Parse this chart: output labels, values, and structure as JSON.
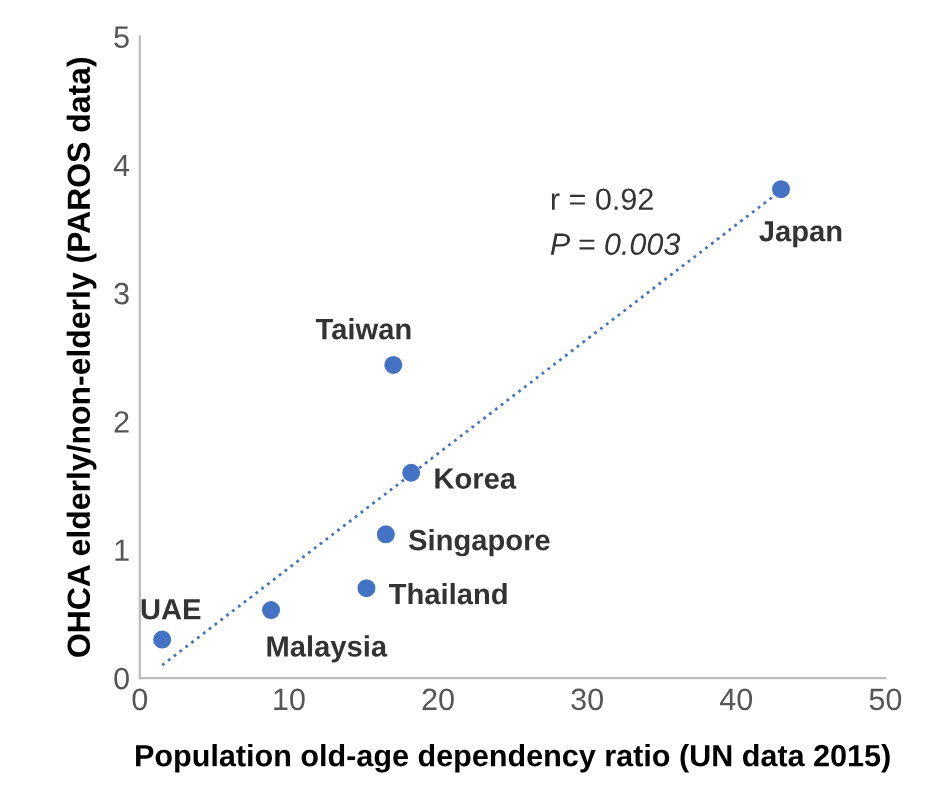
{
  "chart_data": {
    "type": "scatter",
    "xlabel": "Population old-age dependency ratio (UN data 2015)",
    "ylabel": "OHCA elderly/non-elderly (PAROS data)",
    "xlim": [
      0,
      50
    ],
    "ylim": [
      0,
      5
    ],
    "xticks": [
      0,
      10,
      20,
      30,
      40,
      50
    ],
    "yticks": [
      0,
      1,
      2,
      3,
      4,
      5
    ],
    "grid": false,
    "legend": false,
    "series": [
      {
        "marker": "circle",
        "color": "#4472c4",
        "x": [
          1.5,
          8.8,
          15.2,
          16.5,
          18.2,
          17,
          43
        ],
        "values": [
          0.3,
          0.53,
          0.7,
          1.12,
          1.6,
          2.44,
          3.81
        ]
      },
      {
        "type": "line",
        "color": "#4472c4",
        "line_style": "dotted",
        "x": [
          1.5,
          43
        ],
        "values": [
          0.1,
          3.8
        ]
      }
    ],
    "annotations": [
      {
        "text": "UAE",
        "x": 1.5,
        "y": 0.3
      },
      {
        "text": "Malaysia",
        "x": 8.8,
        "y": 0.53
      },
      {
        "text": "Thailand",
        "x": 15.2,
        "y": 0.7
      },
      {
        "text": "Singapore",
        "x": 16.5,
        "y": 1.12
      },
      {
        "text": "Korea",
        "x": 18.2,
        "y": 1.6
      },
      {
        "text": "Taiwan",
        "x": 17,
        "y": 2.44
      },
      {
        "text": "Japan",
        "x": 43,
        "y": 3.81
      },
      "r = 0.92",
      "P = 0.003"
    ]
  }
}
